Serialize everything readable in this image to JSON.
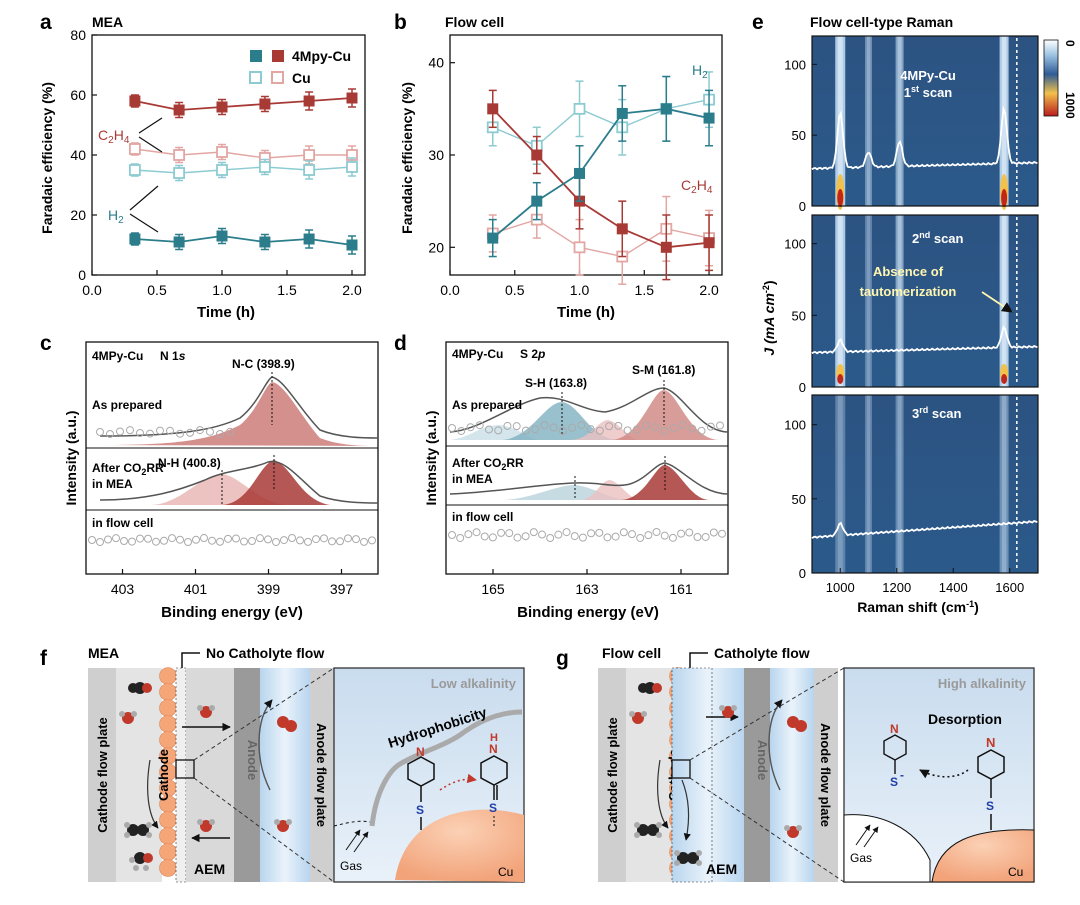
{
  "panels": {
    "a": {
      "letter": "a",
      "title": "MEA",
      "xlabel": "Time (h)",
      "ylabel": "Faradaic efficiency (%)",
      "xticks": [
        "0.0",
        "0.5",
        "1.0",
        "1.5",
        "2.0"
      ],
      "yticks": [
        "0",
        "20",
        "40",
        "60",
        "80"
      ],
      "legend": [
        "4Mpy-Cu",
        "Cu"
      ],
      "label_c2h4_main": "C",
      "label_c2h4_sub": "2",
      "label_c2h4_end": "H",
      "label_c2h4_sub2": "4",
      "label_h2_main": "H",
      "label_h2_sub": "2"
    },
    "b": {
      "letter": "b",
      "title": "Flow cell",
      "xlabel": "Time (h)",
      "ylabel": "Faradaic efficiency (%)",
      "xticks": [
        "0.0",
        "0.5",
        "1.0",
        "1.5",
        "2.0"
      ],
      "yticks": [
        "20",
        "30",
        "40"
      ],
      "label_h2_main": "H",
      "label_h2_sub": "2",
      "label_c2h4_main": "C",
      "label_c2h4_sub": "2",
      "label_c2h4_end": "H",
      "label_c2h4_sub2": "4"
    },
    "c": {
      "letter": "c",
      "sample": "4MPy-Cu",
      "orbital": "N 1",
      "orbital_s": "s",
      "peak1": "N-C (398.9)",
      "peak2": "N-H (400.8)",
      "row1": "As prepared",
      "row2a": "After CO",
      "row2sub": "2",
      "row2b": "RR",
      "row2c": "in MEA",
      "row3": "in flow cell",
      "xlabel": "Binding energy (eV)",
      "ylabel": "Intensity (a.u.)",
      "xticks": [
        "403",
        "401",
        "399",
        "397"
      ]
    },
    "d": {
      "letter": "d",
      "sample": "4MPy-Cu",
      "orbital": "S 2",
      "orbital_p": "p",
      "peak1": "S-H (163.8)",
      "peak2": "S-M (161.8)",
      "row1": "As prepared",
      "row2a": "After CO",
      "row2sub": "2",
      "row2b": "RR",
      "row2c": "in MEA",
      "row3": "in flow cell",
      "xlabel": "Binding energy (eV)",
      "ylabel": "Intensity (a.u.)",
      "xticks": [
        "165",
        "163",
        "161"
      ]
    },
    "e": {
      "letter": "e",
      "title": "Flow cell-type Raman",
      "scan1a": "4MPy-Cu",
      "scan1b": "1",
      "scan1sup": "st",
      "scan1c": " scan",
      "scan2": "2",
      "scan2sup": "nd",
      "scan2c": " scan",
      "scan3": "3",
      "scan3sup": "rd",
      "scan3c": " scan",
      "annot1": "Absence of",
      "annot2": "tautomerization",
      "xlabel": "Raman shift (cm",
      "xlabel_sup": "-1",
      "xlabel_end": ")",
      "ylabel": "J (mA cm",
      "ylabel_sup": "-2",
      "ylabel_end": ")",
      "xticks": [
        "1000",
        "1200",
        "1400",
        "1600"
      ],
      "yticks": [
        "0",
        "50",
        "100"
      ],
      "cbar_top": "0",
      "cbar_bottom": "1000"
    },
    "f": {
      "letter": "f",
      "title": "MEA",
      "flow": "No Catholyte flow",
      "cathode_plate": "Cathode flow plate",
      "cathode": "Cathode",
      "anode": "Anode",
      "anode_plate": "Anode flow plate",
      "aem": "AEM",
      "zoom_title": "Low alkalinity",
      "hydro": "Hydrophobicity",
      "gas": "Gas",
      "cu": "Cu",
      "atom_n": "N",
      "atom_h": "H",
      "atom_s": "S"
    },
    "g": {
      "letter": "g",
      "title": "Flow cell",
      "flow": "Catholyte flow",
      "cathode_plate": "Cathode flow plate",
      "cathode": "Cathode",
      "anode": "Anode",
      "anode_plate": "Anode flow plate",
      "aem": "AEM",
      "zoom_title": "High alkalinity",
      "desorp": "Desorption",
      "gas": "Gas",
      "cu": "Cu",
      "atom_n": "N",
      "atom_s": "S",
      "minus": "-"
    }
  },
  "colors": {
    "mpy": "#2b7d8c",
    "mpy_c2h4": "#a83a36",
    "cu_c2h4": "#e2a6a3",
    "cu_h2": "#8ccbd1"
  },
  "chart_data": [
    {
      "type": "line",
      "panel": "a",
      "x": [
        0.33,
        0.67,
        1.0,
        1.33,
        1.67,
        2.0
      ],
      "ylim": [
        0,
        80
      ],
      "xlim": [
        0,
        2.1
      ],
      "series": [
        {
          "name": "4Mpy-Cu C2H4",
          "values": [
            58,
            55,
            56,
            57,
            58,
            59
          ]
        },
        {
          "name": "4Mpy-Cu H2",
          "values": [
            12,
            11,
            13,
            11,
            12,
            10
          ]
        },
        {
          "name": "Cu C2H4",
          "values": [
            42,
            40,
            41,
            39,
            40,
            40
          ]
        },
        {
          "name": "Cu H2",
          "values": [
            35,
            34,
            35,
            36,
            35,
            36
          ]
        }
      ]
    },
    {
      "type": "line",
      "panel": "b",
      "x": [
        0.33,
        0.67,
        1.0,
        1.33,
        1.67,
        2.0
      ],
      "ylim": [
        17,
        43
      ],
      "xlim": [
        0,
        2.1
      ],
      "series": [
        {
          "name": "4Mpy-Cu C2H4",
          "values": [
            35,
            30,
            25,
            22,
            20,
            20.5
          ]
        },
        {
          "name": "4Mpy-Cu H2",
          "values": [
            21,
            25,
            28,
            34.5,
            35,
            34
          ]
        },
        {
          "name": "Cu C2H4",
          "values": [
            21.5,
            23,
            20,
            19,
            22,
            21
          ]
        },
        {
          "name": "Cu H2",
          "values": [
            33,
            31,
            35,
            33,
            35,
            36
          ]
        }
      ]
    }
  ]
}
